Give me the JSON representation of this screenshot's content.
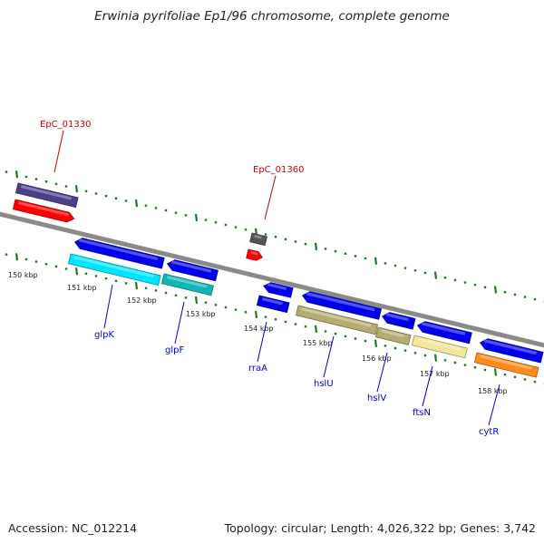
{
  "title": "Erwinia pyrifoliae Ep1/96 chromosome, complete genome",
  "footer": {
    "accession": "Accession: NC_012214",
    "summary": "Topology: circular; Length: 4,026,322 bp; Genes: 3,742"
  },
  "colors": {
    "axis": "#8a8a8a",
    "tick": "#1f7a1f",
    "label_blue": "#0000cc",
    "label_red": "#cc0000",
    "gene_blue": "#0000ee",
    "gene_red": "#ff0000",
    "gene_purple": "#4b3f8c",
    "gene_gray": "#555555",
    "gene_cyan": "#00e5ff",
    "gene_teal": "#12b5b5",
    "gene_khaki": "#b5ad70",
    "gene_paleyellow": "#f2e79a",
    "gene_orange": "#ff8c1a"
  },
  "scale_ticks": [
    {
      "position_kbp": 150,
      "label": "150 kbp"
    },
    {
      "position_kbp": 151,
      "label": "151 kbp"
    },
    {
      "position_kbp": 152,
      "label": "152 kbp"
    },
    {
      "position_kbp": 153,
      "label": "153 kbp"
    },
    {
      "position_kbp": 154,
      "label": "154 kbp"
    },
    {
      "position_kbp": 155,
      "label": "155 kbp"
    },
    {
      "position_kbp": 156,
      "label": "156 kbp"
    },
    {
      "position_kbp": 157,
      "label": "157 kbp"
    },
    {
      "position_kbp": 158,
      "label": "158 kbp"
    }
  ],
  "gene_labels": [
    {
      "name": "EpC_01330",
      "color": "red"
    },
    {
      "name": "EpC_01360",
      "color": "red"
    },
    {
      "name": "glpK",
      "color": "blue"
    },
    {
      "name": "glpF",
      "color": "blue"
    },
    {
      "name": "rraA",
      "color": "blue"
    },
    {
      "name": "hslU",
      "color": "blue"
    },
    {
      "name": "hslV",
      "color": "blue"
    },
    {
      "name": "ftsN",
      "color": "blue"
    },
    {
      "name": "cytR",
      "color": "blue"
    }
  ]
}
